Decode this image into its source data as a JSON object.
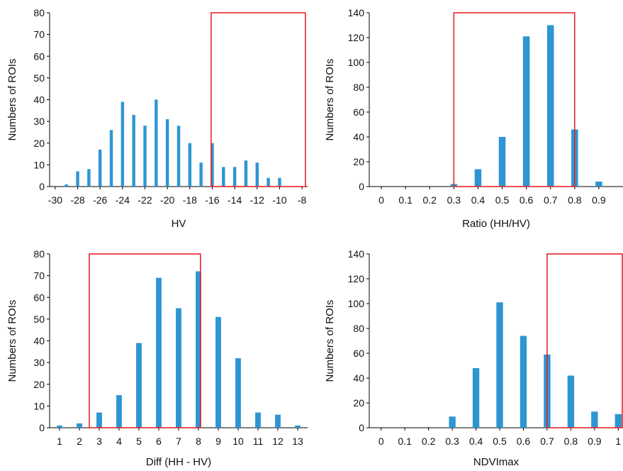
{
  "chart_data": [
    {
      "type": "bar",
      "xlabel": "HV",
      "ylabel": "Numbers of ROIs",
      "ylim": [
        0,
        80
      ],
      "yticks": [
        0,
        10,
        20,
        30,
        40,
        50,
        60,
        70,
        80
      ],
      "xlim": [
        -30.5,
        -7.5
      ],
      "xticks": [
        -30,
        -28,
        -26,
        -24,
        -22,
        -20,
        -18,
        -16,
        -14,
        -12,
        -10,
        -8
      ],
      "x": [
        -30,
        -29,
        -28,
        -27,
        -26,
        -25,
        -24,
        -23,
        -22,
        -21,
        -20,
        -19,
        -18,
        -17,
        -16,
        -15,
        -14,
        -13,
        -12,
        -11,
        -10,
        -9,
        -8
      ],
      "values": [
        0,
        1,
        7,
        8,
        17,
        26,
        39,
        33,
        28,
        40,
        31,
        28,
        20,
        11,
        20,
        9,
        9,
        12,
        11,
        4,
        4,
        0,
        0
      ],
      "threshold_box": [
        -16.1,
        -7.7
      ],
      "bar_color": "#2e95d3",
      "box_color": "#e8242b"
    },
    {
      "type": "bar",
      "xlabel": "Ratio (HH/HV)",
      "ylabel": "Numbers of ROIs",
      "ylim": [
        0,
        140
      ],
      "yticks": [
        0,
        20,
        40,
        60,
        80,
        100,
        120,
        140
      ],
      "xlim": [
        -0.05,
        1.0
      ],
      "xticks": [
        "0",
        "0.1",
        "0.2",
        "0.3",
        "0.4",
        "0.5",
        "0.6",
        "0.7",
        "0.8",
        "0.9"
      ],
      "x": [
        0,
        0.1,
        0.2,
        0.3,
        0.4,
        0.5,
        0.6,
        0.7,
        0.8,
        0.9
      ],
      "values": [
        0,
        0,
        0,
        2,
        14,
        40,
        121,
        130,
        46,
        4
      ],
      "threshold_box": [
        0.3,
        0.8
      ],
      "bar_color": "#2e95d3",
      "box_color": "#e8242b"
    },
    {
      "type": "bar",
      "xlabel": "Diff (HH - HV)",
      "ylabel": "Numbers of ROIs",
      "ylim": [
        0,
        80
      ],
      "yticks": [
        0,
        10,
        20,
        30,
        40,
        50,
        60,
        70,
        80
      ],
      "xlim": [
        0.5,
        13.5
      ],
      "xticks": [
        "1",
        "2",
        "3",
        "4",
        "5",
        "6",
        "7",
        "8",
        "9",
        "10",
        "11",
        "12",
        "13"
      ],
      "x": [
        1,
        2,
        3,
        4,
        5,
        6,
        7,
        8,
        9,
        10,
        11,
        12,
        13
      ],
      "values": [
        1,
        2,
        7,
        15,
        39,
        69,
        55,
        72,
        51,
        32,
        7,
        6,
        1
      ],
      "threshold_box": [
        2.5,
        8.1
      ],
      "bar_color": "#2e95d3",
      "box_color": "#e8242b"
    },
    {
      "type": "bar",
      "xlabel": "NDVImax",
      "ylabel": "Numbers of ROIs",
      "ylim": [
        0,
        140
      ],
      "yticks": [
        0,
        20,
        40,
        60,
        80,
        100,
        120,
        140
      ],
      "xlim": [
        -0.05,
        1.02
      ],
      "xticks": [
        "0",
        "0.1",
        "0.2",
        "0.3",
        "0.4",
        "0.5",
        "0.6",
        "0.7",
        "0.8",
        "0.9",
        "1"
      ],
      "x": [
        0,
        0.1,
        0.2,
        0.3,
        0.4,
        0.5,
        0.6,
        0.7,
        0.8,
        0.9,
        1.0
      ],
      "values": [
        0,
        0,
        0,
        9,
        48,
        101,
        74,
        59,
        42,
        13,
        11
      ],
      "threshold_box": [
        0.7,
        1.02
      ],
      "bar_color": "#2e95d3",
      "box_color": "#e8242b"
    }
  ]
}
